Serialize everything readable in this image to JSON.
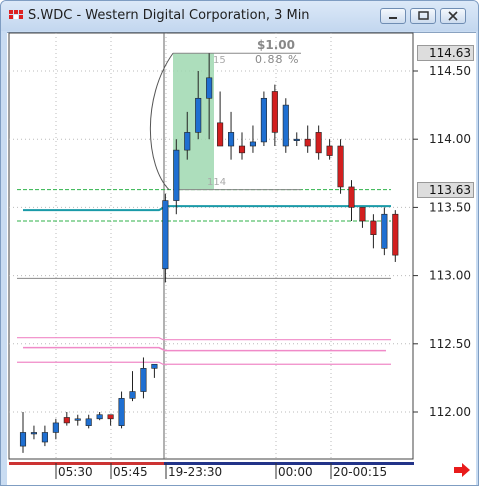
{
  "window": {
    "title": "S.WDC - Western Digital Corporation, 3 Min",
    "buttons": [
      "minimize",
      "restore",
      "close"
    ]
  },
  "price_labels": {
    "high": "114.63",
    "current": "113.63"
  },
  "measure": {
    "price_change": "$1.00",
    "percent_change": "0.88 %",
    "bars_top": "15",
    "bars_bottom": "114"
  },
  "colors": {
    "up": "#1f6fd1",
    "down": "#d21f1f",
    "teal": "#1a9aa8",
    "green_dash": "#2fb24a",
    "pink": "#f08ac8",
    "highlight": "#9fd8b0"
  },
  "chart_data": {
    "type": "candlestick",
    "title": "S.WDC - Western Digital Corporation, 3 Min",
    "y_ticks": [
      112.0,
      112.5,
      113.0,
      113.5,
      114.0,
      114.5
    ],
    "y_tick_labels": [
      "112.00",
      "112.50",
      "113.00",
      "113.50",
      "114.00",
      "114.50"
    ],
    "ylim": [
      111.82,
      114.9
    ],
    "x_tick_labels": [
      "05:30",
      "05:45",
      "19-23:30",
      "00:00",
      "20-00:15"
    ],
    "candles": [
      {
        "o": 111.75,
        "h": 112.0,
        "l": 111.7,
        "c": 111.85
      },
      {
        "o": 111.85,
        "h": 111.9,
        "l": 111.8,
        "c": 111.85
      },
      {
        "o": 111.78,
        "h": 111.9,
        "l": 111.75,
        "c": 111.85
      },
      {
        "o": 111.85,
        "h": 111.95,
        "l": 111.8,
        "c": 111.92
      },
      {
        "o": 111.96,
        "h": 112.0,
        "l": 111.9,
        "c": 111.92
      },
      {
        "o": 111.95,
        "h": 111.98,
        "l": 111.9,
        "c": 111.95
      },
      {
        "o": 111.9,
        "h": 111.98,
        "l": 111.88,
        "c": 111.95
      },
      {
        "o": 111.95,
        "h": 112.0,
        "l": 111.94,
        "c": 111.98
      },
      {
        "o": 111.98,
        "h": 111.98,
        "l": 111.9,
        "c": 111.95
      },
      {
        "o": 111.9,
        "h": 112.15,
        "l": 111.88,
        "c": 112.1
      },
      {
        "o": 112.1,
        "h": 112.3,
        "l": 112.08,
        "c": 112.15
      },
      {
        "o": 112.15,
        "h": 112.4,
        "l": 112.1,
        "c": 112.32
      },
      {
        "o": 112.32,
        "h": 112.35,
        "l": 112.25,
        "c": 112.35
      },
      {
        "o": 113.05,
        "h": 113.6,
        "l": 112.95,
        "c": 113.55
      },
      {
        "o": 113.55,
        "h": 114.0,
        "l": 113.45,
        "c": 113.92
      },
      {
        "o": 113.92,
        "h": 114.2,
        "l": 113.85,
        "c": 114.05
      },
      {
        "o": 114.05,
        "h": 114.5,
        "l": 114.0,
        "c": 114.3
      },
      {
        "o": 114.3,
        "h": 114.63,
        "l": 114.0,
        "c": 114.45
      },
      {
        "o": 114.12,
        "h": 114.35,
        "l": 113.95,
        "c": 113.95
      },
      {
        "o": 113.95,
        "h": 114.2,
        "l": 113.85,
        "c": 114.05
      },
      {
        "o": 113.95,
        "h": 114.05,
        "l": 113.85,
        "c": 113.9
      },
      {
        "o": 113.95,
        "h": 114.1,
        "l": 113.9,
        "c": 113.98
      },
      {
        "o": 113.98,
        "h": 114.35,
        "l": 113.95,
        "c": 114.3
      },
      {
        "o": 114.35,
        "h": 114.4,
        "l": 113.95,
        "c": 114.05
      },
      {
        "o": 113.95,
        "h": 114.3,
        "l": 113.9,
        "c": 114.25
      },
      {
        "o": 114.0,
        "h": 114.05,
        "l": 113.95,
        "c": 114.0
      },
      {
        "o": 114.0,
        "h": 114.1,
        "l": 113.9,
        "c": 113.95
      },
      {
        "o": 114.05,
        "h": 114.1,
        "l": 113.85,
        "c": 113.9
      },
      {
        "o": 113.95,
        "h": 114.0,
        "l": 113.85,
        "c": 113.88
      },
      {
        "o": 113.95,
        "h": 114.0,
        "l": 113.6,
        "c": 113.65
      },
      {
        "o": 113.65,
        "h": 113.7,
        "l": 113.4,
        "c": 113.5
      },
      {
        "o": 113.5,
        "h": 113.5,
        "l": 113.35,
        "c": 113.4
      },
      {
        "o": 113.4,
        "h": 113.45,
        "l": 113.2,
        "c": 113.3
      },
      {
        "o": 113.2,
        "h": 113.5,
        "l": 113.15,
        "c": 113.45
      },
      {
        "o": 113.45,
        "h": 113.48,
        "l": 113.1,
        "c": 113.15
      }
    ],
    "levels": {
      "green_dash_upper": 113.63,
      "green_dash_lower": 113.4,
      "teal": 113.48,
      "gray_line": 112.98,
      "pink_upper": 112.53,
      "pink_mid": 112.45,
      "pink_lower": 112.35
    },
    "grid": true
  }
}
